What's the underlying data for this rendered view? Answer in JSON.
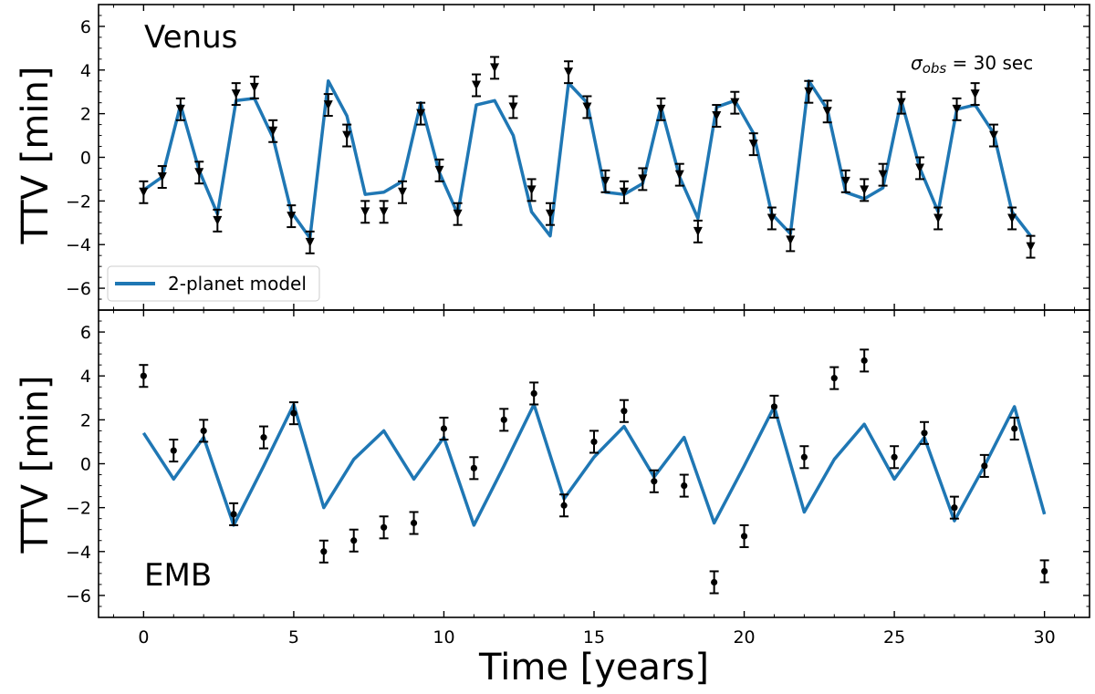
{
  "figure": {
    "xlabel": "Time [years]",
    "annotation_prefix": "σ",
    "annotation_sub": "obs",
    "annotation_suffix": " = 30 sec"
  },
  "chart_data": [
    {
      "type": "line",
      "panel_label": "Venus",
      "ylabel": "TTV [min]",
      "xlim": [
        -1.5,
        31.5
      ],
      "ylim": [
        -7,
        7
      ],
      "xticks": [
        0,
        5,
        10,
        15,
        20,
        25,
        30
      ],
      "yticks": [
        -6,
        -4,
        -2,
        0,
        2,
        4,
        6
      ],
      "legend": {
        "label": "2-planet model",
        "placement": "lower-left"
      },
      "model": {
        "name": "2-planet model",
        "color": "#1f77b4",
        "x": [
          0.0,
          0.62,
          1.23,
          1.85,
          2.46,
          3.08,
          3.69,
          4.31,
          4.92,
          5.54,
          6.15,
          6.77,
          7.38,
          8.0,
          8.62,
          9.23,
          9.85,
          10.46,
          11.08,
          11.69,
          12.31,
          12.92,
          13.54,
          14.15,
          14.77,
          15.38,
          16.0,
          16.62,
          17.23,
          17.85,
          18.46,
          19.08,
          19.69,
          20.31,
          20.92,
          21.54,
          22.15,
          22.77,
          23.38,
          24.0,
          24.62,
          25.23,
          25.85,
          26.46,
          27.08,
          27.69,
          28.31,
          28.92,
          29.54
        ],
        "y": [
          -1.5,
          -0.9,
          2.4,
          -0.6,
          -2.6,
          2.6,
          2.7,
          0.9,
          -2.5,
          -3.7,
          3.5,
          1.9,
          -1.7,
          -1.6,
          -1.1,
          2.5,
          -0.7,
          -2.6,
          2.4,
          2.6,
          1.0,
          -2.5,
          -3.6,
          3.4,
          2.5,
          -1.6,
          -1.7,
          -1.2,
          2.3,
          -0.9,
          -2.8,
          2.3,
          2.6,
          1.1,
          -2.6,
          -3.5,
          3.5,
          2.2,
          -1.6,
          -1.9,
          -1.4,
          2.6,
          -0.5,
          -2.5,
          2.2,
          2.4,
          1.1,
          -2.5,
          -3.6
        ]
      },
      "observations": {
        "marker": "triangle-down",
        "error_min": 0.5,
        "x": [
          0.0,
          0.62,
          1.23,
          1.85,
          2.46,
          3.08,
          3.69,
          4.31,
          4.92,
          5.54,
          6.15,
          6.77,
          7.38,
          8.0,
          8.62,
          9.23,
          9.85,
          10.46,
          11.08,
          11.69,
          12.31,
          12.92,
          13.54,
          14.15,
          14.77,
          15.38,
          16.0,
          16.62,
          17.23,
          17.85,
          18.46,
          19.08,
          19.69,
          20.31,
          20.92,
          21.54,
          22.15,
          22.77,
          23.38,
          24.0,
          24.62,
          25.23,
          25.85,
          26.46,
          27.08,
          27.69,
          28.31,
          28.92,
          29.54
        ],
        "y": [
          -1.6,
          -0.9,
          2.2,
          -0.7,
          -2.9,
          2.9,
          3.2,
          1.2,
          -2.7,
          -3.9,
          2.4,
          1.0,
          -2.5,
          -2.5,
          -1.6,
          2.0,
          -0.6,
          -2.6,
          3.3,
          4.1,
          2.3,
          -1.5,
          -2.6,
          3.9,
          2.3,
          -1.1,
          -1.6,
          -1.0,
          2.2,
          -0.8,
          -3.4,
          1.9,
          2.5,
          0.6,
          -2.8,
          -3.8,
          3.0,
          2.1,
          -1.1,
          -1.5,
          -0.8,
          2.5,
          -0.5,
          -2.8,
          2.2,
          2.9,
          1.0,
          -2.8,
          -4.1
        ]
      }
    },
    {
      "type": "line",
      "panel_label": "EMB",
      "ylabel": "TTV [min]",
      "xlim": [
        -1.5,
        31.5
      ],
      "ylim": [
        -7,
        7
      ],
      "xticks": [
        0,
        5,
        10,
        15,
        20,
        25,
        30
      ],
      "yticks": [
        -6,
        -4,
        -2,
        0,
        2,
        4,
        6
      ],
      "model": {
        "name": "2-planet model",
        "color": "#1f77b4",
        "x": [
          0,
          1,
          2,
          3,
          4,
          5,
          6,
          7,
          8,
          9,
          10,
          11,
          12,
          13,
          14,
          15,
          16,
          17,
          18,
          19,
          20,
          21,
          22,
          23,
          24,
          25,
          26,
          27,
          28,
          29,
          30
        ],
        "y": [
          1.4,
          -0.7,
          1.2,
          -2.8,
          -0.1,
          2.7,
          -2.0,
          0.2,
          1.5,
          -0.7,
          1.2,
          -2.8,
          -0.1,
          2.7,
          -1.6,
          0.3,
          1.7,
          -0.6,
          1.2,
          -2.7,
          -0.1,
          2.6,
          -2.2,
          0.2,
          1.8,
          -0.7,
          1.2,
          -2.6,
          -0.1,
          2.6,
          -2.3
        ]
      },
      "observations": {
        "marker": "circle",
        "error_min": 0.5,
        "x": [
          0,
          1,
          2,
          3,
          4,
          5,
          6,
          7,
          8,
          9,
          10,
          11,
          12,
          13,
          14,
          15,
          16,
          17,
          18,
          19,
          20,
          21,
          22,
          23,
          24,
          25,
          26,
          27,
          28,
          29,
          30
        ],
        "y": [
          4.0,
          0.6,
          1.5,
          -2.3,
          1.2,
          2.3,
          -4.0,
          -3.5,
          -2.9,
          -2.7,
          1.6,
          -0.2,
          2.0,
          3.2,
          -1.9,
          1.0,
          2.4,
          -0.8,
          -1.0,
          -5.4,
          -3.3,
          2.6,
          0.3,
          3.9,
          4.7,
          0.3,
          1.4,
          -2.0,
          -0.1,
          1.6,
          -4.9
        ]
      }
    }
  ]
}
